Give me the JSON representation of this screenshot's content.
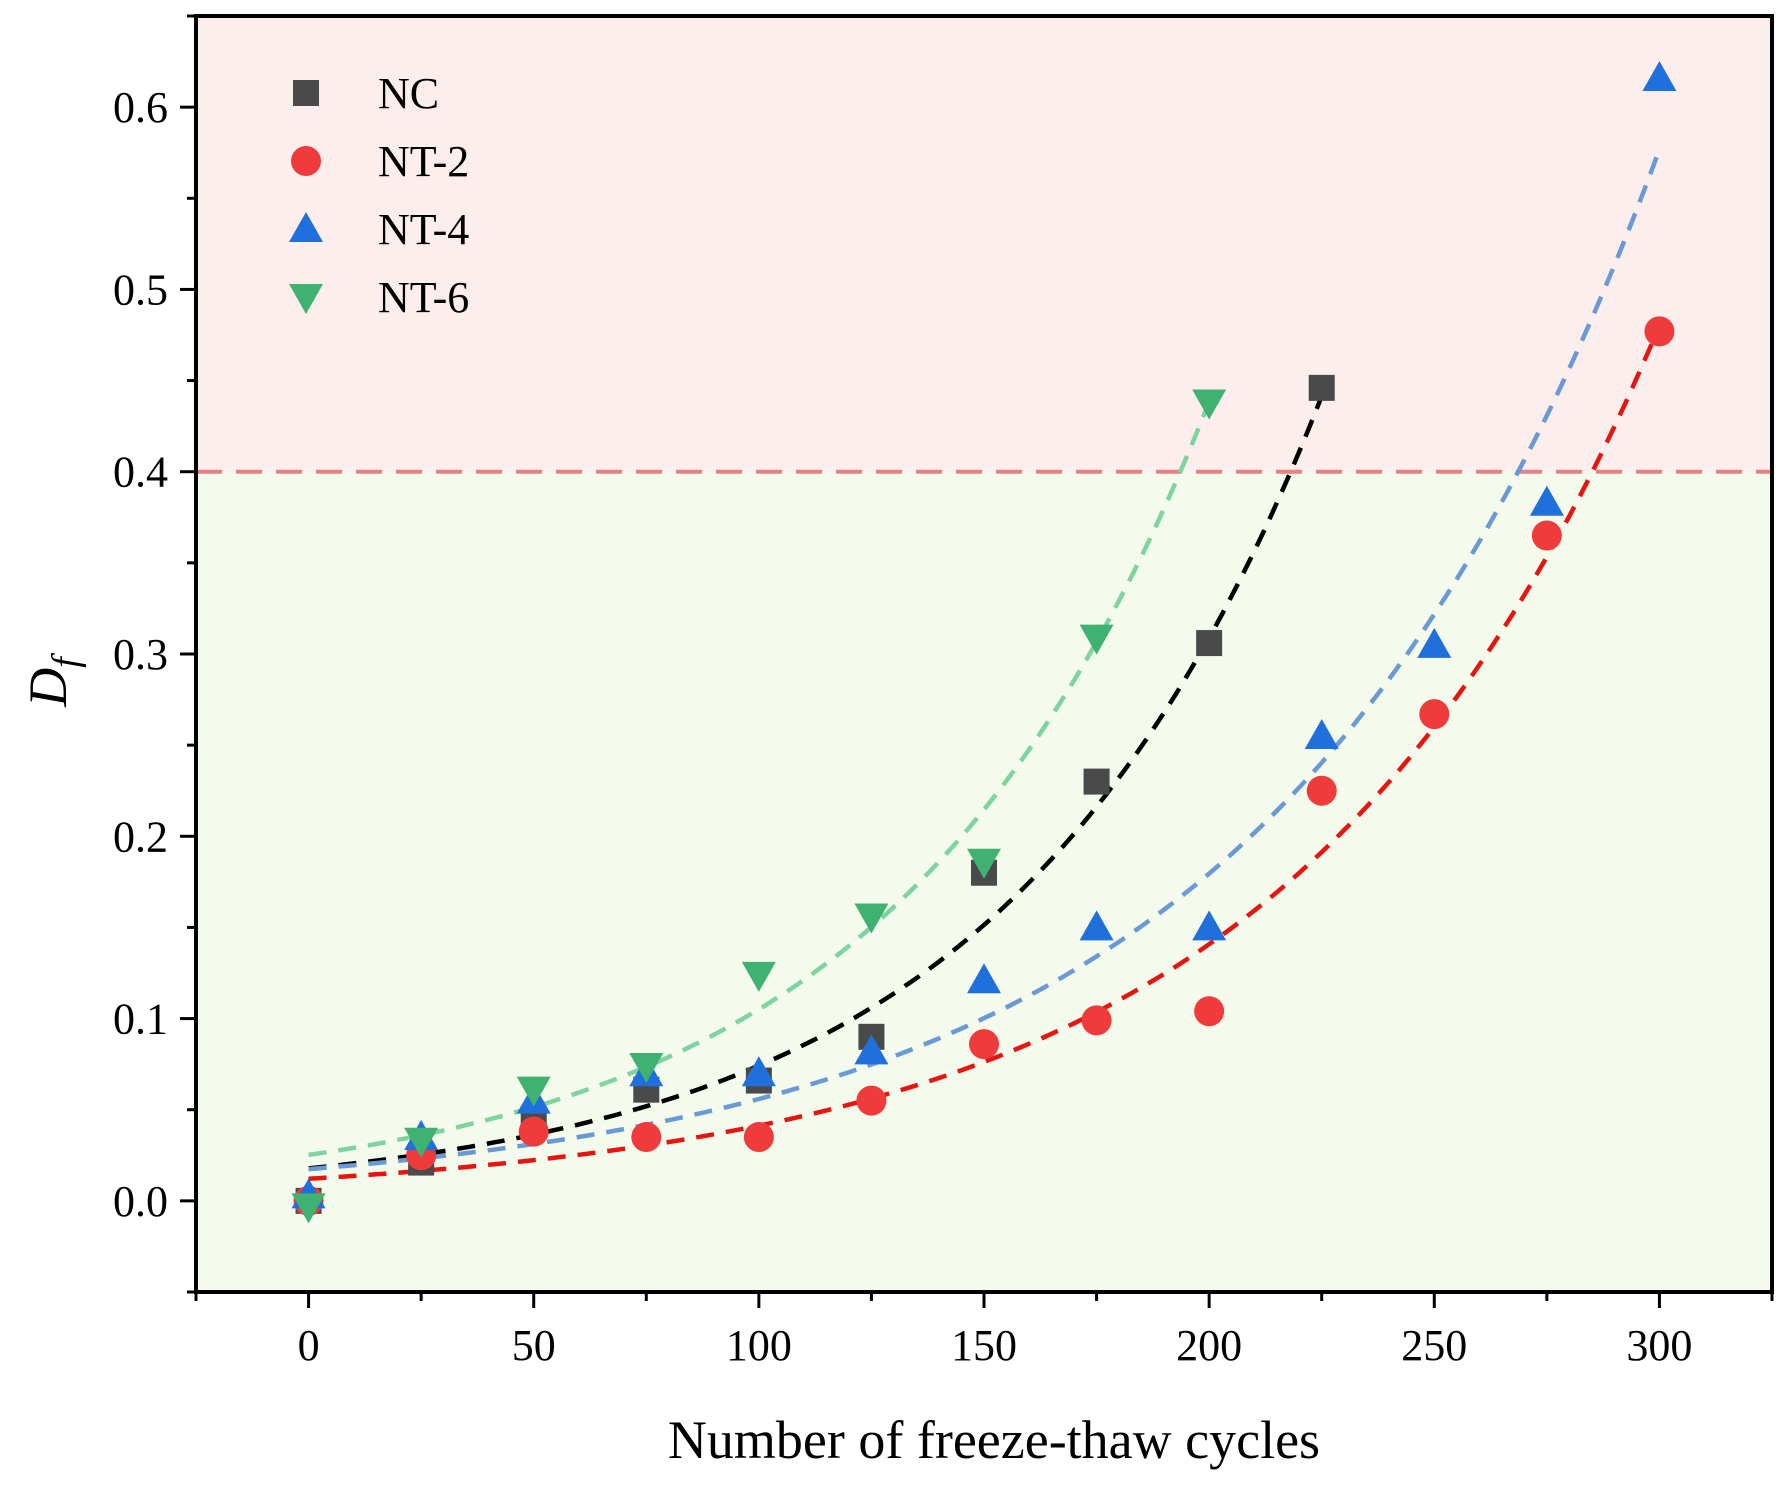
{
  "chart_data": {
    "type": "scatter",
    "title": "",
    "xlabel": "Number of freeze-thaw cycles",
    "ylabel": "D",
    "ylabel_subscript": "f",
    "xlim": [
      -25,
      325
    ],
    "ylim": [
      -0.05,
      0.65
    ],
    "x_ticks": [
      0,
      50,
      100,
      150,
      200,
      250,
      300
    ],
    "y_ticks": [
      0.0,
      0.1,
      0.2,
      0.3,
      0.4,
      0.5,
      0.6
    ],
    "x_tick_labels": [
      "0",
      "50",
      "100",
      "150",
      "200",
      "250",
      "300"
    ],
    "y_tick_labels": [
      "0.0",
      "0.1",
      "0.2",
      "0.3",
      "0.4",
      "0.5",
      "0.6"
    ],
    "threshold": 0.4,
    "threshold_color": "#e88080",
    "region_above_color": "#fdeeee",
    "region_below_color": "#f4faec",
    "legend_position": "top-left",
    "series": [
      {
        "name": "NC",
        "marker": "square",
        "color": "#4a4a4a",
        "fit_color": "#000000",
        "x": [
          0,
          25,
          50,
          75,
          100,
          125,
          150,
          175,
          200,
          225
        ],
        "y": [
          0.0,
          0.021,
          0.045,
          0.061,
          0.066,
          0.09,
          0.18,
          0.23,
          0.306,
          0.446
        ],
        "fit": {
          "a": 0.0178,
          "b": 0.01427,
          "x_range": [
            0,
            226
          ]
        }
      },
      {
        "name": "NT-2",
        "marker": "circle",
        "color": "#ef3b3b",
        "fit_color": "#e8140f",
        "x": [
          0,
          25,
          50,
          75,
          100,
          125,
          150,
          175,
          200,
          225,
          250,
          275,
          300
        ],
        "y": [
          0.0,
          0.025,
          0.038,
          0.035,
          0.035,
          0.055,
          0.086,
          0.099,
          0.104,
          0.225,
          0.267,
          0.365,
          0.477
        ],
        "fit": {
          "a": 0.0121,
          "b": 0.01227,
          "x_range": [
            0,
            300
          ]
        }
      },
      {
        "name": "NT-4",
        "marker": "triangle-up",
        "color": "#1f6fdc",
        "fit_color": "#6a9ad6",
        "x": [
          0,
          25,
          50,
          75,
          100,
          125,
          150,
          175,
          200,
          225,
          250,
          275,
          300
        ],
        "y": [
          0.003,
          0.035,
          0.055,
          0.07,
          0.07,
          0.082,
          0.121,
          0.15,
          0.15,
          0.255,
          0.305,
          0.383,
          0.616
        ],
        "fit": {
          "a": 0.0174,
          "b": 0.01167,
          "x_range": [
            0,
            300
          ]
        }
      },
      {
        "name": "NT-6",
        "marker": "triangle-down",
        "color": "#3fb170",
        "fit_color": "#7ed4a0",
        "x": [
          0,
          25,
          50,
          75,
          100,
          125,
          150,
          175,
          200
        ],
        "y": [
          -0.003,
          0.033,
          0.061,
          0.074,
          0.124,
          0.156,
          0.186,
          0.309,
          0.438
        ],
        "fit": {
          "a": 0.0252,
          "b": 0.01428,
          "x_range": [
            0,
            200
          ]
        }
      }
    ]
  }
}
